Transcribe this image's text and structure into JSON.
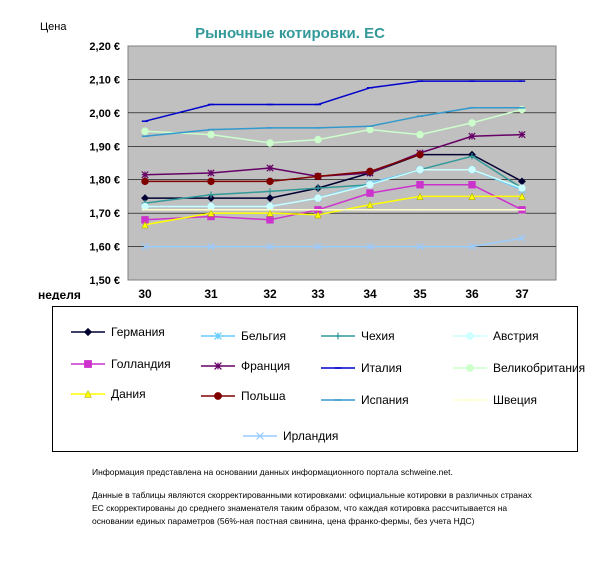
{
  "chart_data": {
    "type": "line",
    "title": "Рыночные котировки. ЕС",
    "ylabel": "Цена",
    "xlabel": "неделя",
    "x": [
      30,
      31,
      32,
      33,
      34,
      35,
      36,
      37
    ],
    "y_ticks": [
      "1,50 €",
      "1,60 €",
      "1,70 €",
      "1,80 €",
      "1,90 €",
      "2,00 €",
      "2,10 €",
      "2,20 €"
    ],
    "ylim": [
      1.5,
      2.2
    ],
    "grid": true,
    "legend_position": "bottom",
    "series": [
      {
        "name": "Германия",
        "color": "#000033",
        "marker": "diamond",
        "values": [
          1.745,
          1.745,
          1.745,
          1.775,
          1.82,
          1.875,
          1.875,
          1.795
        ]
      },
      {
        "name": "Бельгия",
        "color": "#66ccff",
        "marker": "star",
        "values": [
          1.72,
          1.72,
          1.72,
          1.745,
          1.79,
          1.83,
          1.83,
          1.77
        ]
      },
      {
        "name": "Чехия",
        "color": "#339999",
        "marker": "plus",
        "values": [
          1.73,
          1.755,
          1.765,
          1.775,
          1.785,
          1.83,
          1.87,
          1.775
        ]
      },
      {
        "name": "Австрия",
        "color": "#ccffff",
        "marker": "circle",
        "values": [
          1.72,
          1.72,
          1.72,
          1.745,
          1.785,
          1.83,
          1.83,
          1.775
        ]
      },
      {
        "name": "Голландия",
        "color": "#cc33cc",
        "marker": "square",
        "values": [
          1.68,
          1.69,
          1.68,
          1.71,
          1.76,
          1.785,
          1.785,
          1.71
        ]
      },
      {
        "name": "Франция",
        "color": "#660066",
        "marker": "asterisk",
        "values": [
          1.815,
          1.82,
          1.835,
          1.81,
          1.82,
          1.88,
          1.93,
          1.935
        ]
      },
      {
        "name": "Италия",
        "color": "#0000cc",
        "marker": "dash",
        "values": [
          1.975,
          2.025,
          2.025,
          2.025,
          2.075,
          2.095,
          2.095,
          2.095
        ]
      },
      {
        "name": "Великобритания",
        "color": "#ccffcc",
        "marker": "circle",
        "values": [
          1.945,
          1.935,
          1.91,
          1.92,
          1.95,
          1.935,
          1.97,
          2.01
        ]
      },
      {
        "name": "Дания",
        "color": "#ffff00",
        "marker": "triangle",
        "values": [
          1.665,
          1.7,
          1.7,
          1.695,
          1.725,
          1.75,
          1.75,
          1.75
        ]
      },
      {
        "name": "Польша",
        "color": "#800000",
        "marker": "circle",
        "values": [
          1.795,
          1.795,
          1.795,
          1.81,
          1.825,
          1.875,
          null,
          null
        ]
      },
      {
        "name": "Испания",
        "color": "#3399cc",
        "marker": "dash",
        "values": [
          1.93,
          1.95,
          1.955,
          1.955,
          1.96,
          1.99,
          2.015,
          2.015
        ]
      },
      {
        "name": "Швеция",
        "color": "#ffffcc",
        "marker": "dash",
        "values": [
          1.71,
          1.71,
          1.71,
          1.71,
          1.71,
          1.71,
          1.71,
          1.71
        ]
      },
      {
        "name": "Ирландия",
        "color": "#99ccff",
        "marker": "x",
        "values": [
          1.6,
          1.6,
          1.6,
          1.6,
          1.6,
          1.6,
          1.6,
          1.625
        ]
      }
    ]
  },
  "notes": {
    "line1": "Информация представлена на основании данных информационного портала schweine.net.",
    "line2": "Данные в таблицы являются скорректированными котировками: официальные котировки в различных странах ЕС скорректированы до среднего знаменателя таким образом, что каждая котировка рассчитывается на основании единых параметров (56%-ная постная свинина, цена франко-фермы, без учета НДС)"
  }
}
